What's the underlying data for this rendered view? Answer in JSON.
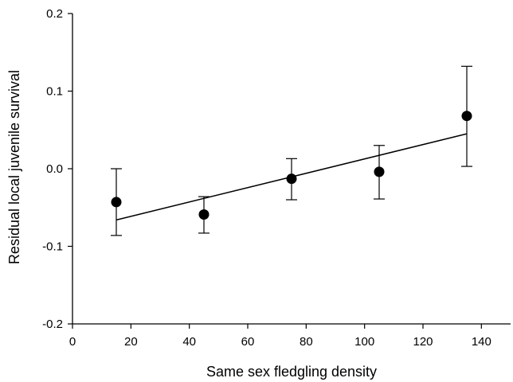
{
  "chart_data": {
    "type": "scatter",
    "title": "",
    "xlabel": "Same sex fledgling density",
    "ylabel": "Residual local juvenile survival",
    "xlim": [
      0,
      150
    ],
    "ylim": [
      -0.2,
      0.2
    ],
    "xticks": [
      0,
      20,
      40,
      60,
      80,
      100,
      120,
      140
    ],
    "yticks": [
      -0.2,
      -0.1,
      0.0,
      0.1,
      0.2
    ],
    "xtick_labels": [
      "0",
      "20",
      "40",
      "60",
      "80",
      "100",
      "120",
      "140"
    ],
    "ytick_labels": [
      "-0.2",
      "-0.1",
      "0.0",
      "0.1",
      "0.2"
    ],
    "grid": false,
    "points": [
      {
        "x": 15,
        "y": -0.043,
        "err_low": -0.086,
        "err_high": 0.0
      },
      {
        "x": 45,
        "y": -0.059,
        "err_low": -0.083,
        "err_high": -0.036
      },
      {
        "x": 75,
        "y": -0.013,
        "err_low": -0.04,
        "err_high": 0.013
      },
      {
        "x": 105,
        "y": -0.004,
        "err_low": -0.039,
        "err_high": 0.03
      },
      {
        "x": 135,
        "y": 0.068,
        "err_low": 0.003,
        "err_high": 0.132
      }
    ],
    "fit_line": {
      "x": [
        15,
        135
      ],
      "y": [
        -0.066,
        0.045
      ]
    }
  }
}
